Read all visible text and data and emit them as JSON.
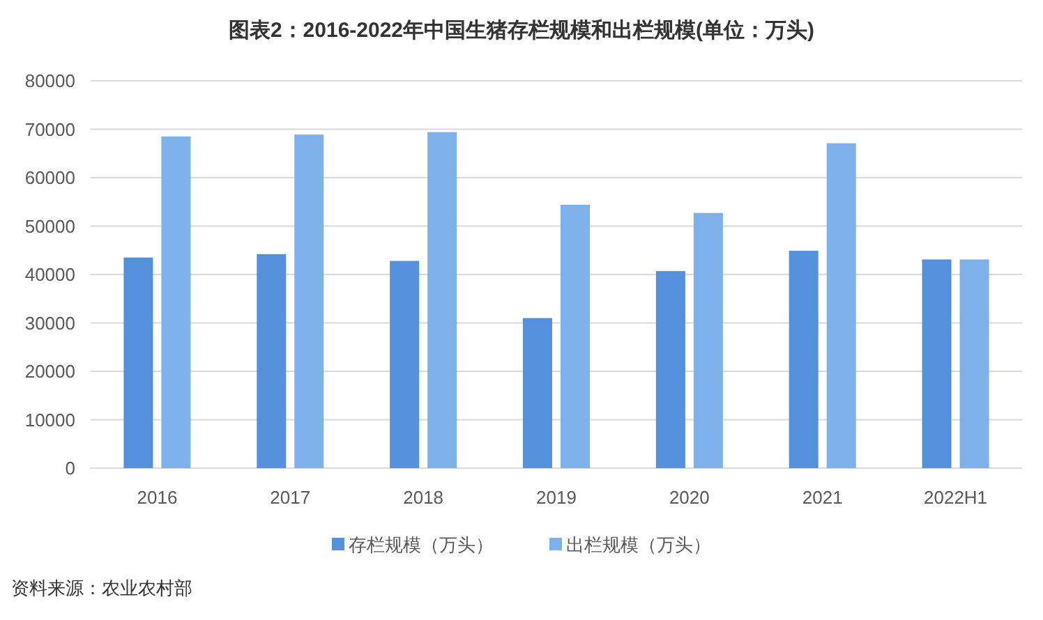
{
  "chart_data": {
    "type": "bar",
    "title": "图表2：2016-2022年中国生猪存栏规模和出栏规模(单位：万头)",
    "categories": [
      "2016",
      "2017",
      "2018",
      "2019",
      "2020",
      "2021",
      "2022H1"
    ],
    "series": [
      {
        "name": "存栏规模（万头）",
        "color": "#5590dc",
        "values": [
          43500,
          44200,
          42800,
          31000,
          40700,
          44900,
          43100
        ]
      },
      {
        "name": "出栏规模（万头）",
        "color": "#7eb0ea",
        "values": [
          68500,
          68900,
          69400,
          54400,
          52700,
          67100,
          43100
        ]
      }
    ],
    "ylim": [
      0,
      80000
    ],
    "yticks": [
      0,
      10000,
      20000,
      30000,
      40000,
      50000,
      60000,
      70000,
      80000
    ],
    "grid": "y",
    "legend": "bottom",
    "annotations": [
      "资料来源：农业农村部"
    ]
  }
}
